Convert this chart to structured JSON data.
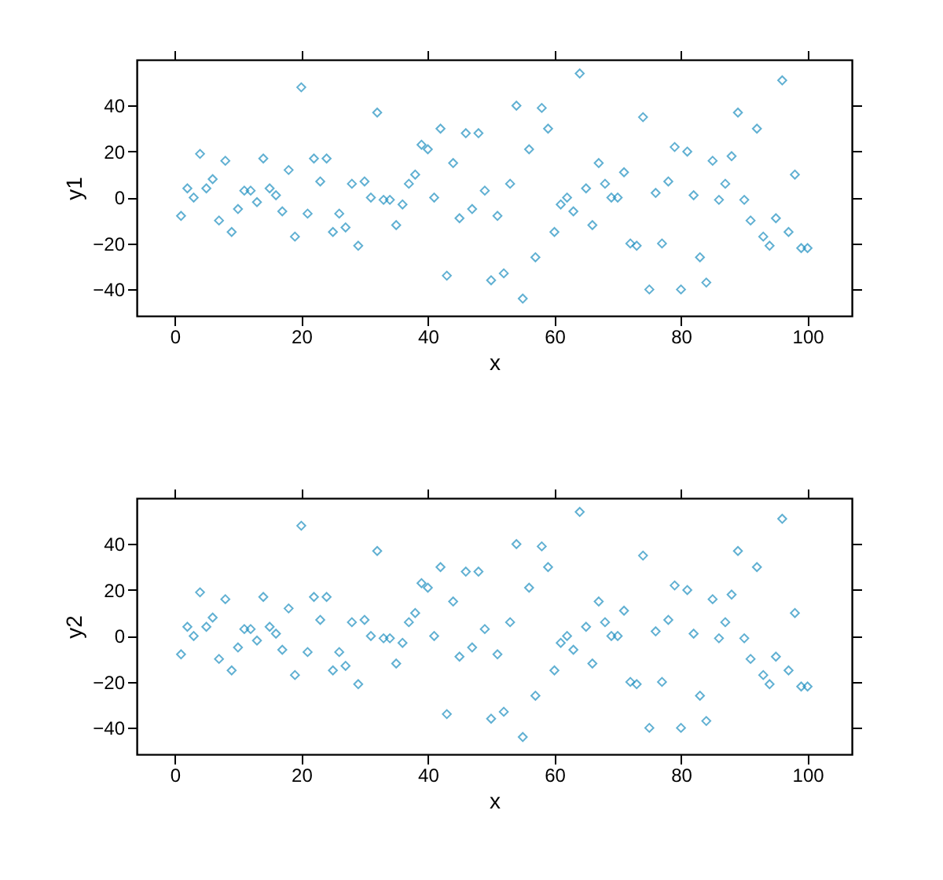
{
  "chart_data": [
    {
      "type": "scatter",
      "xlabel": "x",
      "ylabel": "y1",
      "x": [
        1,
        2,
        3,
        4,
        5,
        6,
        7,
        8,
        9,
        10,
        11,
        12,
        13,
        14,
        15,
        16,
        17,
        18,
        19,
        20,
        21,
        22,
        23,
        24,
        25,
        26,
        27,
        28,
        29,
        30,
        31,
        32,
        33,
        34,
        35,
        36,
        37,
        38,
        39,
        40,
        41,
        42,
        43,
        44,
        45,
        46,
        47,
        48,
        49,
        50,
        51,
        52,
        53,
        54,
        55,
        56,
        57,
        58,
        59,
        60,
        61,
        62,
        63,
        64,
        65,
        66,
        67,
        68,
        69,
        70,
        71,
        72,
        73,
        74,
        75,
        76,
        77,
        78,
        79,
        80,
        81,
        82,
        83,
        84,
        85,
        86,
        87,
        88,
        89,
        90,
        91,
        92,
        93,
        94,
        95,
        96,
        97,
        98,
        99,
        100
      ],
      "series": [
        {
          "color": "#1e8fc0",
          "values": [
            -8,
            4,
            0,
            19,
            4,
            8,
            -10,
            16,
            -15,
            -5,
            3,
            3,
            -2,
            17,
            4,
            1,
            -6,
            12,
            -17,
            48,
            -7,
            17,
            7,
            17,
            -15,
            -7,
            -13,
            6,
            -21,
            7,
            0,
            37,
            -1,
            -1,
            -12,
            -3,
            6,
            10,
            23,
            21,
            0,
            30,
            -34,
            15,
            -9,
            28,
            -5,
            28,
            3,
            -36,
            -8,
            -33,
            6,
            40,
            -44,
            21,
            -26,
            39,
            30,
            -15,
            -3,
            0,
            -6,
            54,
            4,
            -12,
            15,
            6,
            0,
            0,
            11,
            -20,
            -21,
            35,
            -40,
            2,
            -20,
            7,
            22,
            -40,
            20,
            1,
            -26,
            -37,
            16,
            -1,
            6,
            18,
            37,
            -1,
            -10,
            30,
            -17,
            -21,
            -9,
            51,
            -15,
            10,
            -22,
            -22
          ]
        }
      ],
      "xlim": [
        -6,
        107
      ],
      "ylim": [
        -51.5,
        60
      ],
      "xticks": [
        0,
        20,
        40,
        60,
        80,
        100
      ],
      "yticks": [
        -40,
        -20,
        0,
        20,
        40
      ],
      "marker": "diamond",
      "grid": false
    },
    {
      "type": "scatter",
      "xlabel": "x",
      "ylabel": "y2",
      "x": [
        1,
        2,
        3,
        4,
        5,
        6,
        7,
        8,
        9,
        10,
        11,
        12,
        13,
        14,
        15,
        16,
        17,
        18,
        19,
        20,
        21,
        22,
        23,
        24,
        25,
        26,
        27,
        28,
        29,
        30,
        31,
        32,
        33,
        34,
        35,
        36,
        37,
        38,
        39,
        40,
        41,
        42,
        43,
        44,
        45,
        46,
        47,
        48,
        49,
        50,
        51,
        52,
        53,
        54,
        55,
        56,
        57,
        58,
        59,
        60,
        61,
        62,
        63,
        64,
        65,
        66,
        67,
        68,
        69,
        70,
        71,
        72,
        73,
        74,
        75,
        76,
        77,
        78,
        79,
        80,
        81,
        82,
        83,
        84,
        85,
        86,
        87,
        88,
        89,
        90,
        91,
        92,
        93,
        94,
        95,
        96,
        97,
        98,
        99,
        100
      ],
      "series": [
        {
          "color": "#1e8fc0",
          "values": [
            -8,
            4,
            0,
            19,
            4,
            8,
            -10,
            16,
            -15,
            -5,
            3,
            3,
            -2,
            17,
            4,
            1,
            -6,
            12,
            -17,
            48,
            -7,
            17,
            7,
            17,
            -15,
            -7,
            -13,
            6,
            -21,
            7,
            0,
            37,
            -1,
            -1,
            -12,
            -3,
            6,
            10,
            23,
            21,
            0,
            30,
            -34,
            15,
            -9,
            28,
            -5,
            28,
            3,
            -36,
            -8,
            -33,
            6,
            40,
            -44,
            21,
            -26,
            39,
            30,
            -15,
            -3,
            0,
            -6,
            54,
            4,
            -12,
            15,
            6,
            0,
            0,
            11,
            -20,
            -21,
            35,
            -40,
            2,
            -20,
            7,
            22,
            -40,
            20,
            1,
            -26,
            -37,
            16,
            -1,
            6,
            18,
            37,
            -1,
            -10,
            30,
            -17,
            -21,
            -9,
            51,
            -15,
            10,
            -22,
            -22
          ]
        }
      ],
      "xlim": [
        -6,
        107
      ],
      "ylim": [
        -51.5,
        60
      ],
      "xticks": [
        0,
        20,
        40,
        60,
        80,
        100
      ],
      "yticks": [
        -40,
        -20,
        0,
        20,
        40
      ],
      "marker": "diamond",
      "grid": false
    }
  ]
}
